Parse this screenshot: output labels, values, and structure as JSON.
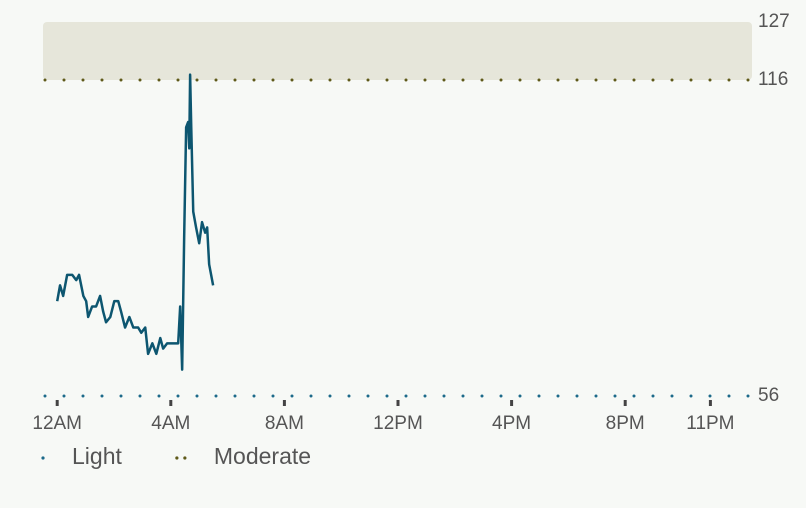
{
  "chart_data": {
    "type": "line",
    "x": [
      0,
      0.1,
      0.21,
      0.35,
      0.53,
      0.67,
      0.77,
      0.92,
      1.02,
      1.09,
      1.23,
      1.37,
      1.51,
      1.62,
      1.72,
      1.87,
      2.01,
      2.15,
      2.25,
      2.39,
      2.54,
      2.68,
      2.85,
      2.96,
      3.1,
      3.2,
      3.35,
      3.49,
      3.63,
      3.73,
      3.87,
      4.05,
      4.26,
      4.33,
      4.4,
      4.47,
      4.54,
      4.61,
      4.65,
      4.68,
      4.72,
      4.79,
      4.89,
      5.0,
      5.1,
      5.21,
      5.28,
      5.35,
      5.49
    ],
    "series": [
      {
        "color": "#0d5670",
        "values": [
          74,
          77,
          75,
          79,
          79,
          78,
          79,
          75,
          74,
          71,
          73,
          73,
          75,
          72,
          70,
          71,
          74,
          74,
          72,
          69,
          71,
          69,
          69,
          68,
          69,
          64,
          66,
          64,
          67,
          65,
          66,
          66,
          66,
          73,
          61,
          86,
          107,
          108,
          103,
          117,
          107,
          91,
          88,
          85,
          89,
          87,
          88,
          81,
          77
        ]
      }
    ],
    "xlim": [
      -0.5,
      24.5
    ],
    "xticks": [
      {
        "value": 0,
        "label": "12AM"
      },
      {
        "value": 4,
        "label": "4AM"
      },
      {
        "value": 8,
        "label": "8AM"
      },
      {
        "value": 12,
        "label": "12PM"
      },
      {
        "value": 16,
        "label": "4PM"
      },
      {
        "value": 20,
        "label": "8PM"
      },
      {
        "value": 23,
        "label": "11PM"
      }
    ],
    "ylim": [
      56,
      127
    ],
    "yticks": [
      56,
      116,
      127
    ],
    "zones": [
      {
        "name": "Light",
        "value": 56,
        "color": "#1d6a8a"
      },
      {
        "name": "Moderate",
        "value": 116,
        "color": "#5f5a1a"
      }
    ],
    "band_color": "#e6e6da"
  }
}
